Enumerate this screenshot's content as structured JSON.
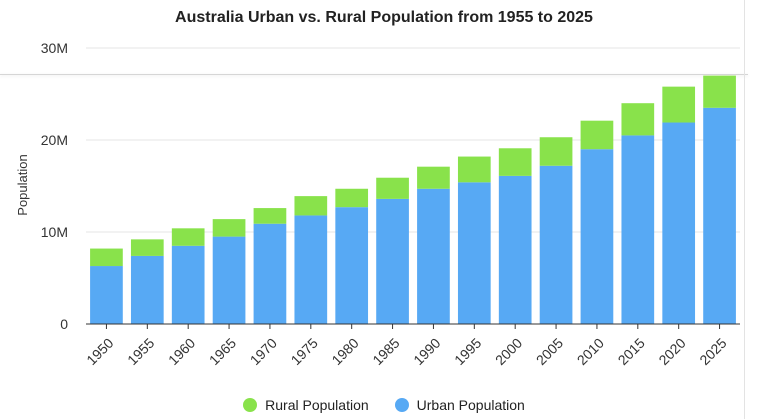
{
  "chart_data": {
    "type": "bar",
    "stacked": true,
    "title": "Australia Urban vs. Rural Population from 1955 to 2025",
    "xlabel": "",
    "ylabel": "Population",
    "ylim": [
      0,
      30000000
    ],
    "yticks": [
      {
        "value": 0,
        "label": "0"
      },
      {
        "value": 10000000,
        "label": "10M"
      },
      {
        "value": 20000000,
        "label": "20M"
      },
      {
        "value": 30000000,
        "label": "30M"
      }
    ],
    "grid": true,
    "legend_position": "bottom",
    "categories": [
      "1950",
      "1955",
      "1960",
      "1965",
      "1970",
      "1975",
      "1980",
      "1985",
      "1990",
      "1995",
      "2000",
      "2005",
      "2010",
      "2015",
      "2020",
      "2025"
    ],
    "series": [
      {
        "name": "Urban Population",
        "color": "#57a9f4",
        "values": [
          6300000,
          7400000,
          8500000,
          9500000,
          10900000,
          11800000,
          12700000,
          13600000,
          14700000,
          15400000,
          16100000,
          17200000,
          19000000,
          20500000,
          21900000,
          23500000
        ]
      },
      {
        "name": "Rural Population",
        "color": "#89e24b",
        "values": [
          1900000,
          1800000,
          1900000,
          1900000,
          1700000,
          2100000,
          2000000,
          2300000,
          2400000,
          2800000,
          3000000,
          3100000,
          3100000,
          3500000,
          3900000,
          3500000
        ]
      }
    ],
    "legend_order": [
      "Rural Population",
      "Urban Population"
    ]
  }
}
